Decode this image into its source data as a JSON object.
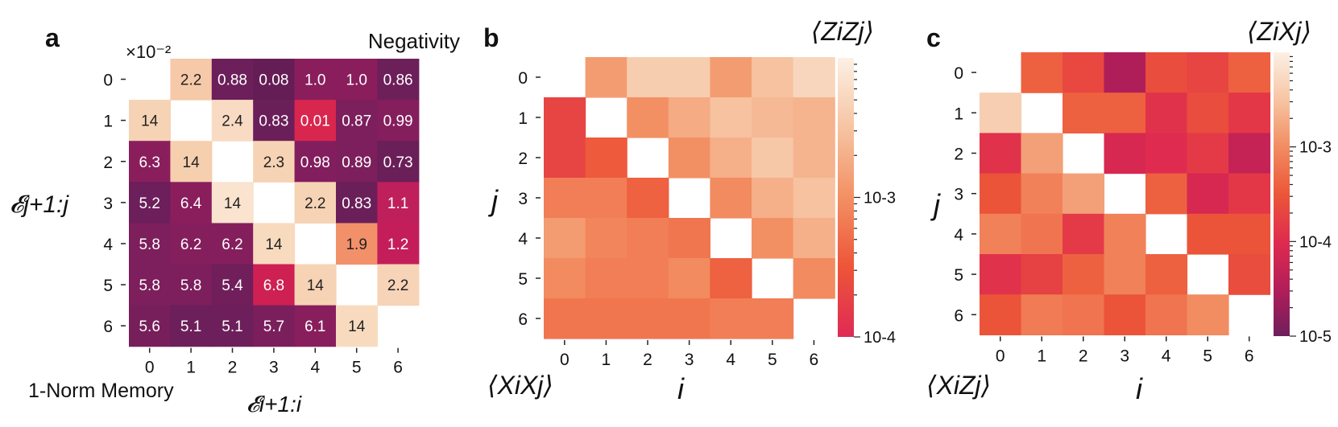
{
  "chart_data": [
    {
      "type": "heatmap",
      "panel_label": "a",
      "multiplier_label": "×10⁻²",
      "corner_labels": {
        "upper_triangle": "Negativity",
        "lower_triangle": "1-Norm Memory"
      },
      "xlabel": "𝓔i+1:i",
      "ylabel": "𝓔j+1:j",
      "x_ticks": [
        "0",
        "1",
        "2",
        "3",
        "4",
        "5",
        "6"
      ],
      "y_ticks": [
        "0",
        "1",
        "2",
        "3",
        "4",
        "5",
        "6"
      ],
      "values": [
        [
          null,
          2.2,
          0.88,
          0.08,
          1.0,
          1.0,
          0.86
        ],
        [
          14,
          null,
          2.4,
          0.83,
          0.01,
          0.87,
          0.99
        ],
        [
          6.3,
          14,
          null,
          2.3,
          0.98,
          0.89,
          0.73
        ],
        [
          5.2,
          6.4,
          14,
          null,
          2.2,
          0.83,
          1.1
        ],
        [
          5.8,
          6.2,
          6.2,
          14,
          null,
          1.9,
          1.2
        ],
        [
          5.8,
          5.8,
          5.4,
          6.8,
          14,
          null,
          2.2
        ],
        [
          5.6,
          5.1,
          5.1,
          5.7,
          6.1,
          14,
          null
        ]
      ],
      "cell_labels": [
        [
          null,
          "2.2",
          "0.88",
          "0.08",
          "1.0",
          "1.0",
          "0.86"
        ],
        [
          "14",
          null,
          "2.4",
          "0.83",
          "0.01",
          "0.87",
          "0.99"
        ],
        [
          "6.3",
          "14",
          null,
          "2.3",
          "0.98",
          "0.89",
          "0.73"
        ],
        [
          "5.2",
          "6.4",
          "14",
          null,
          "2.2",
          "0.83",
          "1.1"
        ],
        [
          "5.8",
          "6.2",
          "6.2",
          "14",
          null,
          "1.9",
          "1.2"
        ],
        [
          "5.8",
          "5.8",
          "5.4",
          "6.8",
          "14",
          null,
          "2.2"
        ],
        [
          "5.6",
          "5.1",
          "5.1",
          "5.7",
          "6.1",
          "14",
          null
        ]
      ],
      "colors": [
        [
          null,
          "#f6c9a8",
          "#6c1f5a",
          "#651d55",
          "#8a1e5d",
          "#8a1e5d",
          "#6d1f5a"
        ],
        [
          "#f6d3b4",
          null,
          "#f9dbc3",
          "#6b1f59",
          "#d9264f",
          "#7c1f5c",
          "#851e5d"
        ],
        [
          "#8a1e5d",
          "#f6cfae",
          null,
          "#f6d3b4",
          "#821e5d",
          "#7c1f5c",
          "#6a1f59"
        ],
        [
          "#6c1f5a",
          "#8a1e5d",
          "#fae3cf",
          null,
          "#f6d3b4",
          "#6a1f59",
          "#bf1f5a"
        ],
        [
          "#7c1f5c",
          "#851e5d",
          "#851e5d",
          "#f8dabf",
          null,
          "#f2906a",
          "#c41e5a"
        ],
        [
          "#7c1f5c",
          "#7c1f5c",
          "#701f5b",
          "#ce2053",
          "#f6d3b4",
          null,
          "#f7d3b8"
        ],
        [
          "#771f5b",
          "#6c1f5a",
          "#6c1f5a",
          "#7a1f5c",
          "#891e5d",
          "#f8dbbf",
          null
        ]
      ]
    },
    {
      "type": "heatmap",
      "panel_label": "b",
      "upper_title": "⟨ZiZj⟩",
      "lower_title": "⟨XiXj⟩",
      "xlabel": "i",
      "ylabel": "j",
      "x_ticks": [
        "0",
        "1",
        "2",
        "3",
        "4",
        "5",
        "6"
      ],
      "y_ticks": [
        "0",
        "1",
        "2",
        "3",
        "4",
        "5",
        "6"
      ],
      "colorbar": {
        "scale": "log",
        "range": [
          0.0001,
          0.01
        ],
        "tick_labels": [
          "10-4",
          "10-3"
        ]
      },
      "values": [
        [
          null,
          0.0013,
          0.004,
          0.004,
          0.0013,
          0.003,
          0.005
        ],
        [
          0.0002,
          null,
          0.001,
          0.0018,
          0.003,
          0.0025,
          0.0022
        ],
        [
          0.0002,
          0.00035,
          null,
          0.001,
          0.002,
          0.0035,
          0.0022
        ],
        [
          0.0007,
          0.0007,
          0.0004,
          null,
          0.0009,
          0.002,
          0.003
        ],
        [
          0.0013,
          0.0008,
          0.0007,
          0.0006,
          null,
          0.001,
          0.002
        ],
        [
          0.0009,
          0.0007,
          0.0007,
          0.0009,
          0.0004,
          null,
          0.0009
        ],
        [
          0.0006,
          0.0006,
          0.0006,
          0.0006,
          0.0007,
          0.0007,
          null
        ]
      ]
    },
    {
      "type": "heatmap",
      "panel_label": "c",
      "upper_title": "⟨ZiXj⟩",
      "lower_title": "⟨XiZj⟩",
      "xlabel": "i",
      "ylabel": "j",
      "x_ticks": [
        "0",
        "1",
        "2",
        "3",
        "4",
        "5",
        "6"
      ],
      "y_ticks": [
        "0",
        "1",
        "2",
        "3",
        "4",
        "5",
        "6"
      ],
      "colorbar": {
        "scale": "log",
        "range": [
          1e-05,
          0.01
        ],
        "tick_labels": [
          "10-5",
          "10-4",
          "10-3"
        ]
      },
      "values": [
        [
          null,
          0.0004,
          0.00022,
          3e-05,
          0.00025,
          0.0002,
          0.0004
        ],
        [
          0.004,
          null,
          0.0004,
          0.0004,
          0.00012,
          0.00025,
          0.00014
        ],
        [
          0.00012,
          0.0015,
          null,
          8e-05,
          0.0001,
          0.00015,
          5e-05
        ],
        [
          0.0003,
          0.0008,
          0.0015,
          null,
          0.0004,
          8e-05,
          0.00014
        ],
        [
          0.0008,
          0.0006,
          0.00015,
          0.0008,
          null,
          0.0003,
          0.0003
        ],
        [
          0.00012,
          0.00018,
          0.0004,
          0.0008,
          0.0004,
          null,
          0.00025
        ],
        [
          0.0003,
          0.0007,
          0.0006,
          0.0003,
          0.0006,
          0.001,
          null
        ]
      ]
    }
  ]
}
